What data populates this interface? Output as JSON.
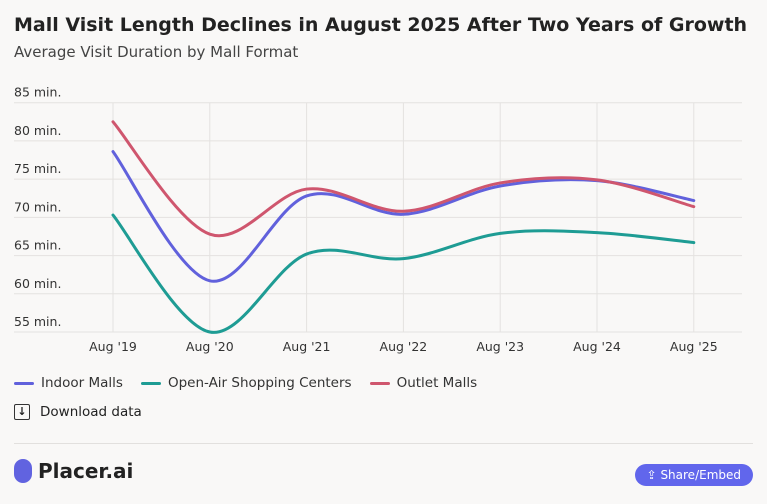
{
  "header": {
    "title": "Mall Visit Length Declines in August 2025 After Two Years of Growth",
    "subtitle": "Average Visit Duration by Mall Format"
  },
  "chart_data": {
    "type": "line",
    "title": "Mall Visit Length Declines in August 2025 After Two Years of Growth",
    "subtitle": "Average Visit Duration by Mall Format",
    "categories": [
      "Aug '19",
      "Aug '20",
      "Aug '21",
      "Aug '22",
      "Aug '23",
      "Aug '24",
      "Aug '25"
    ],
    "y_ticks": [
      "55 min.",
      "60 min.",
      "65 min.",
      "70 min.",
      "75 min.",
      "80 min.",
      "85 min."
    ],
    "ylim": [
      55,
      85
    ],
    "grid": true,
    "legend_position": "bottom-left",
    "series": [
      {
        "name": "Indoor Malls",
        "color": "#6161dc",
        "values": [
          78.6,
          61.7,
          72.8,
          70.4,
          74.1,
          74.8,
          72.2
        ]
      },
      {
        "name": "Open-Air Shopping Centers",
        "color": "#1e9c94",
        "values": [
          70.3,
          55.0,
          65.2,
          64.6,
          67.9,
          68.0,
          66.7
        ]
      },
      {
        "name": "Outlet Malls",
        "color": "#cf566e",
        "values": [
          82.5,
          67.8,
          73.7,
          70.8,
          74.5,
          74.9,
          71.4
        ]
      }
    ]
  },
  "download_label": "Download data",
  "logo_text": "Placer.ai",
  "share_label": "Share/Embed"
}
